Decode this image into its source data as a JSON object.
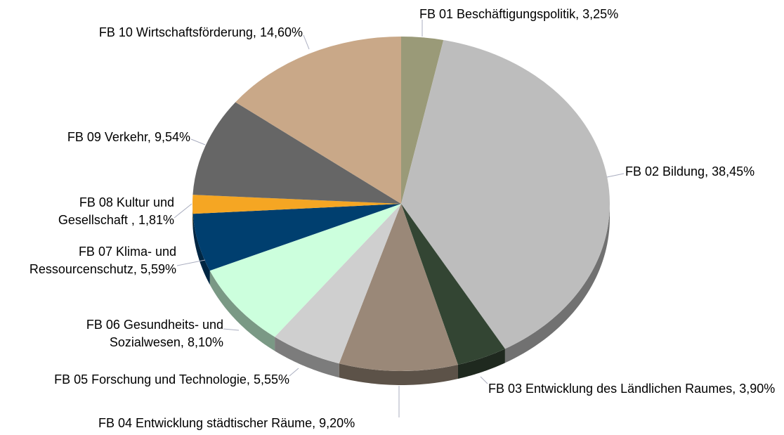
{
  "chart_data": {
    "type": "pie",
    "categories": [
      "FB 01 Beschäftigungspolitik,",
      "FB 02 Bildung,",
      "FB 03 Entwicklung des Ländlichen Raumes,",
      "FB 04 Entwicklung städtischer Räume,",
      "FB 05 Forschung und Technologie,",
      "FB 06 Gesundheits- und Sozialwesen,",
      "FB 07 Klima- und Ressourcenschutz,",
      "FB 08 Kultur und Gesellschaft ,",
      "FB 09 Verkehr,",
      "FB 10 Wirtschaftsförderung,"
    ],
    "values": [
      3.25,
      38.45,
      3.9,
      9.2,
      5.55,
      8.1,
      5.59,
      1.81,
      9.54,
      14.6
    ],
    "value_labels": [
      "3,25%",
      "38,45%",
      "3,90%",
      "9,20%",
      "5,55%",
      "8,10%",
      "5,59%",
      "1,81%",
      "9,54%",
      "14,60%"
    ],
    "colors": [
      "#9a9a78",
      "#bdbdbd",
      "#334533",
      "#9a8878",
      "#cfcfcf",
      "#ccffdd",
      "#003f6f",
      "#f5a623",
      "#666666",
      "#c9a888"
    ]
  }
}
